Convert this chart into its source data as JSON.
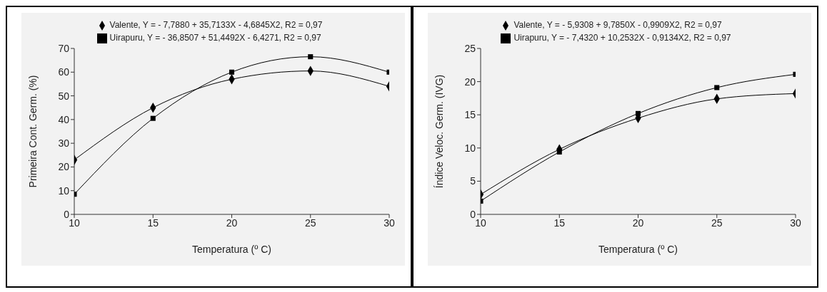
{
  "chart_data": [
    {
      "type": "line",
      "xlabel": "Temperatura (º C)",
      "ylabel": "Primeira Cont. Germ. (%)",
      "x": [
        10,
        15,
        20,
        25,
        30
      ],
      "xlim": [
        10,
        30
      ],
      "xticks": [
        10,
        15,
        20,
        25,
        30
      ],
      "ylim": [
        0,
        70
      ],
      "yticks": [
        0,
        10,
        20,
        30,
        40,
        50,
        60,
        70
      ],
      "grid": false,
      "legend": "top",
      "line_style": "solid",
      "series": [
        {
          "name": "Valente, Y = - 7,7880 + 35,7133X - 4,6845X2, R2 = 0,97",
          "color": "#000000",
          "marker": "diamond",
          "values": [
            23,
            45,
            57,
            60.5,
            54
          ]
        },
        {
          "name": "Uirapuru, Y = - 36,8507 + 51,4492X - 6,4271, R2 = 0,97",
          "color": "#000000",
          "marker": "square",
          "values": [
            8.5,
            40.5,
            60,
            66.5,
            60
          ]
        }
      ]
    },
    {
      "type": "line",
      "xlabel": "Temperatura (º C)",
      "ylabel": "Índice Veloc. Germ. (IVG)",
      "x": [
        10,
        15,
        20,
        25,
        30
      ],
      "xlim": [
        10,
        30
      ],
      "xticks": [
        10,
        15,
        20,
        25,
        30
      ],
      "ylim": [
        0,
        25
      ],
      "yticks": [
        0,
        5,
        10,
        15,
        20,
        25
      ],
      "grid": false,
      "legend": "top",
      "line_style": "solid",
      "series": [
        {
          "name": "Valente, Y = - 5,9308 + 9,7850X - 0,9909X2, R2 = 0,97",
          "color": "#000000",
          "marker": "diamond",
          "values": [
            3,
            9.8,
            14.5,
            17.4,
            18.2
          ]
        },
        {
          "name": "Uirapuru, Y = - 7,4320 + 10,2532X - 0,9134X2, R2 = 0,97",
          "color": "#000000",
          "marker": "square",
          "values": [
            2,
            9.4,
            15.2,
            19.1,
            21.1
          ]
        }
      ]
    }
  ]
}
